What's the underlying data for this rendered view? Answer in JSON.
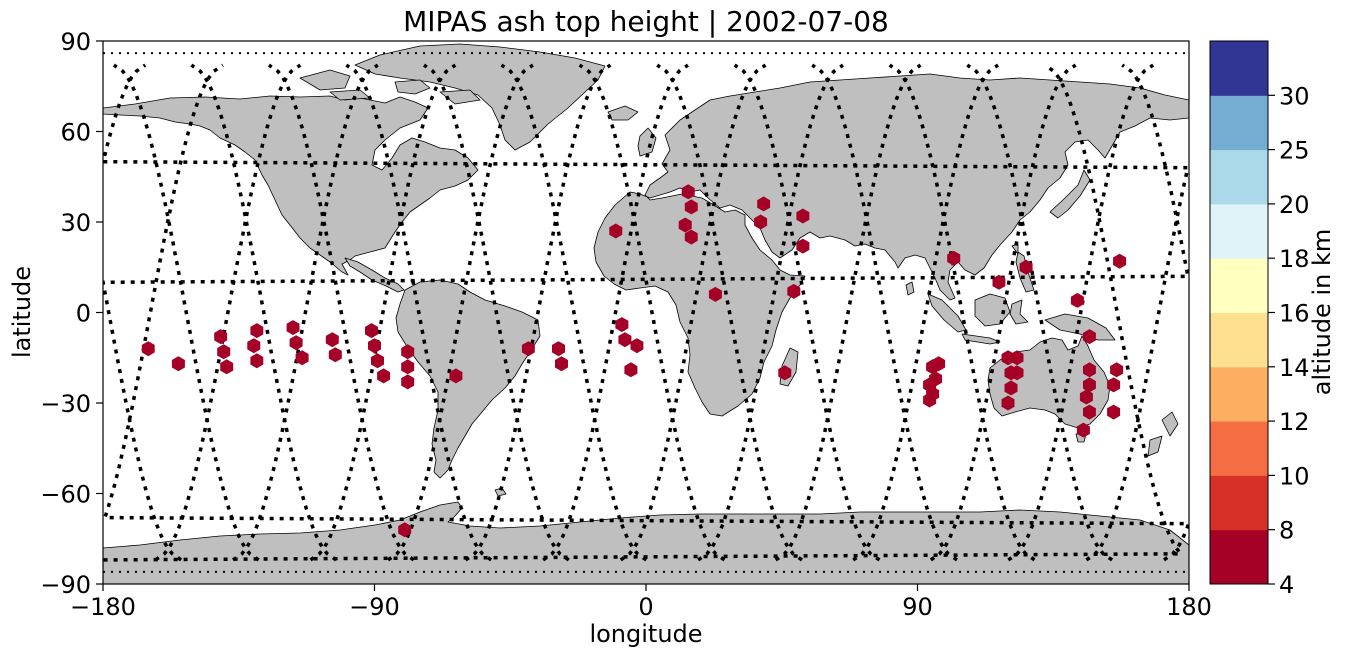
{
  "title": "MIPAS ash top height | 2002-07-08",
  "xlabel": "longitude",
  "ylabel": "latitude",
  "x_ticks": [
    "−180",
    "−90",
    "0",
    "90",
    "180"
  ],
  "y_ticks": [
    "90",
    "60",
    "30",
    "0",
    "−30",
    "−60",
    "−90"
  ],
  "colorbar": {
    "label": "altitude in km",
    "ticks": [
      "4",
      "8",
      "10",
      "12",
      "14",
      "16",
      "18",
      "20",
      "25",
      "30"
    ],
    "bounds": [
      4,
      8,
      10,
      12,
      14,
      16,
      18,
      20,
      25,
      30
    ],
    "colors": [
      "#a50026",
      "#d73027",
      "#f46d43",
      "#fdae61",
      "#fee090",
      "#ffffbf",
      "#e0f3f8",
      "#abd9e9",
      "#74add1",
      "#313695"
    ]
  },
  "colors": {
    "land": "#bfbfbf",
    "coast": "#000000",
    "marker": "#a50026",
    "track": "#000000"
  },
  "chart_data": {
    "type": "scatter",
    "title": "MIPAS ash top height | 2002-07-08",
    "xlabel": "longitude",
    "ylabel": "latitude",
    "xlim": [
      -180,
      180
    ],
    "ylim": [
      -90,
      90
    ],
    "marker": "hexagon",
    "points": [
      [
        -165,
        -12
      ],
      [
        -155,
        -17
      ],
      [
        -141,
        -8
      ],
      [
        -140,
        -13
      ],
      [
        -139,
        -18
      ],
      [
        -129,
        -6
      ],
      [
        -130,
        -11
      ],
      [
        -129,
        -16
      ],
      [
        -117,
        -5
      ],
      [
        -116,
        -10
      ],
      [
        -114,
        -15
      ],
      [
        -104,
        -9
      ],
      [
        -103,
        -14
      ],
      [
        -91,
        -6
      ],
      [
        -90,
        -11
      ],
      [
        -89,
        -16
      ],
      [
        -87,
        -21
      ],
      [
        -79,
        -13
      ],
      [
        -79,
        -18
      ],
      [
        -79,
        -23
      ],
      [
        -80,
        -72
      ],
      [
        -63,
        -21
      ],
      [
        -39,
        -12
      ],
      [
        -29,
        -12
      ],
      [
        -28,
        -17
      ],
      [
        -10,
        27
      ],
      [
        -8,
        -4
      ],
      [
        -7,
        -9
      ],
      [
        -5,
        -19
      ],
      [
        -3,
        -11
      ],
      [
        14,
        40
      ],
      [
        15,
        35
      ],
      [
        13,
        29
      ],
      [
        15,
        25
      ],
      [
        23,
        6
      ],
      [
        39,
        36
      ],
      [
        38,
        30
      ],
      [
        49,
        7
      ],
      [
        46,
        -20
      ],
      [
        52,
        32
      ],
      [
        52,
        22
      ],
      [
        95,
        -18
      ],
      [
        97,
        -17
      ],
      [
        96,
        -22
      ],
      [
        94,
        -24
      ],
      [
        95,
        -27
      ],
      [
        94,
        -29
      ],
      [
        102,
        18
      ],
      [
        117,
        10
      ],
      [
        126,
        15
      ],
      [
        120,
        -15
      ],
      [
        121,
        -20
      ],
      [
        123,
        -15
      ],
      [
        123,
        -20
      ],
      [
        121,
        -25
      ],
      [
        120,
        -30
      ],
      [
        143,
        4
      ],
      [
        147,
        -8
      ],
      [
        147,
        -19
      ],
      [
        147,
        -24
      ],
      [
        146,
        -28
      ],
      [
        147,
        -33
      ],
      [
        145,
        -39
      ],
      [
        157,
        17
      ],
      [
        156,
        -19
      ],
      [
        155,
        -24
      ],
      [
        155,
        -33
      ]
    ],
    "colorbar_label": "altitude in km"
  }
}
